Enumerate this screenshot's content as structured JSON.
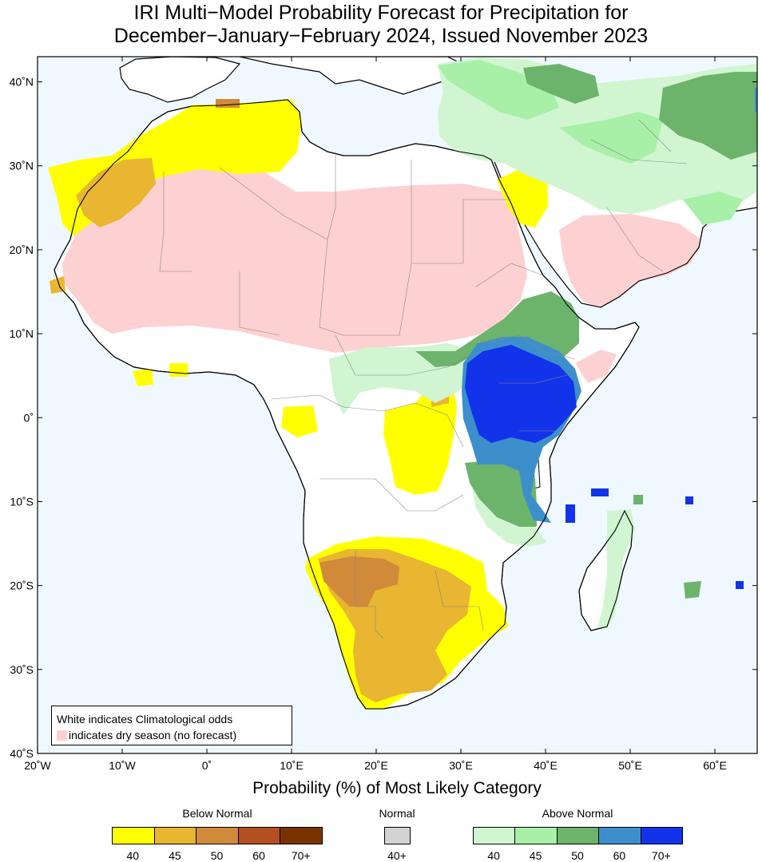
{
  "title": {
    "line1": "IRI Multi−Model Probability Forecast for Precipitation for",
    "line2": "December−January−February 2024, Issued November 2023"
  },
  "axes": {
    "x_ticks": [
      "20˚W",
      "10˚W",
      "0˚",
      "10˚E",
      "20˚E",
      "30˚E",
      "40˚E",
      "50˚E",
      "60˚E"
    ],
    "y_ticks": [
      "40˚N",
      "30˚N",
      "20˚N",
      "10˚N",
      "0˚",
      "10˚S",
      "20˚S",
      "30˚S",
      "40˚S"
    ],
    "x_range": [
      -20,
      65
    ],
    "y_range": [
      -40,
      43
    ],
    "xlabel": "Probability (%) of Most Likely Category"
  },
  "note": {
    "line1": "White indicates Climatological odds",
    "line2": "indicates dry season (no forecast)"
  },
  "legend": {
    "below": {
      "title": "Below Normal",
      "labels": [
        "40",
        "45",
        "50",
        "60",
        "70+"
      ],
      "colors": [
        "#ffff00",
        "#e8b631",
        "#d08a3a",
        "#b44f22",
        "#7a3300"
      ]
    },
    "normal": {
      "title": "Normal",
      "labels": [
        "40+"
      ],
      "colors": [
        "#d3d3d3"
      ]
    },
    "above": {
      "title": "Above Normal",
      "labels": [
        "40",
        "45",
        "50",
        "60",
        "70+"
      ],
      "colors": [
        "#d0f5d0",
        "#a8f0a8",
        "#6cb46c",
        "#3d8fcc",
        "#1233ea"
      ]
    }
  },
  "colors": {
    "ocean": "#f0f8ff",
    "land": "#ffffff",
    "dry_season": "#fdd1d1"
  }
}
